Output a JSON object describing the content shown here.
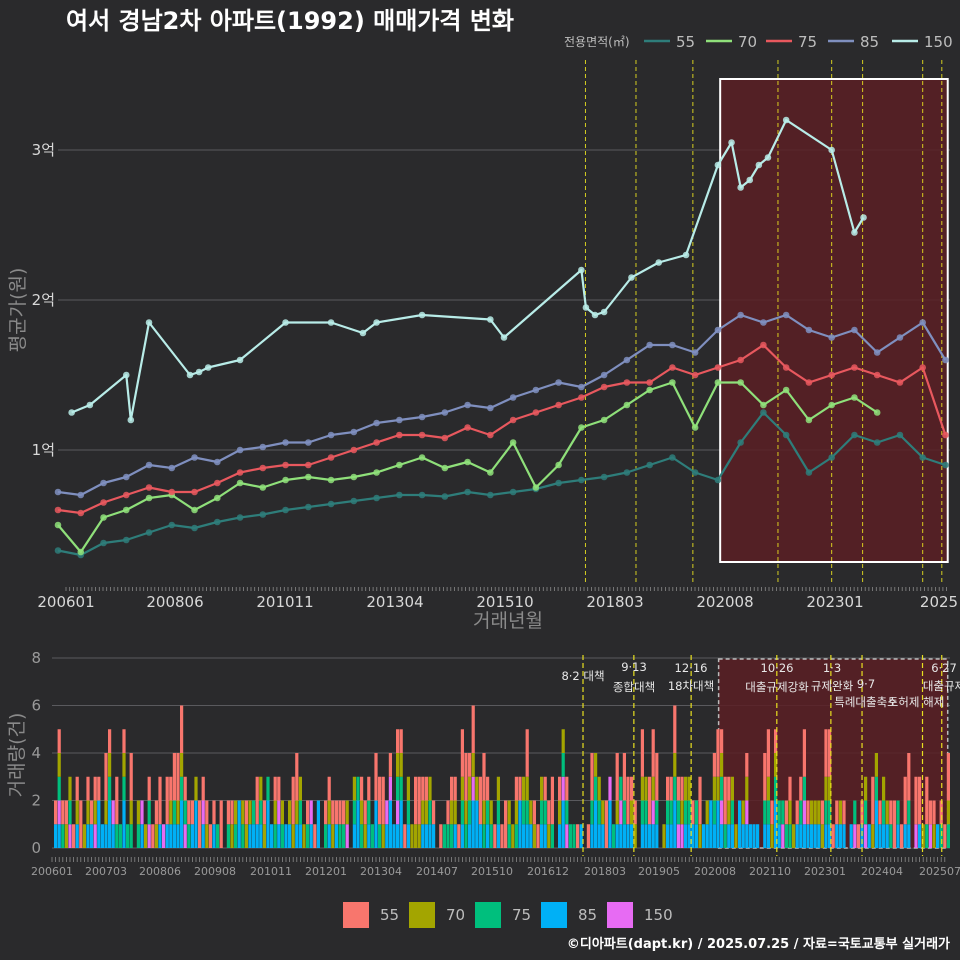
{
  "title": "여서 경남2차 아파트(1992) 매매가격 변화",
  "footer": "©디아파트(dapt.kr) / 2025.07.25 / 자료=국토교통부 실거래가",
  "colors": {
    "background": "#2a2a2c",
    "s55": "#2e7d7a",
    "s70": "#8fe07a",
    "s75": "#e8585e",
    "s85": "#7f8fbf",
    "s150": "#b8ece8",
    "b55": "#f8766d",
    "b70": "#a3a500",
    "b75": "#00bf7d",
    "b85": "#00b0f6",
    "b150": "#e76bf3",
    "highlight": "#5a1f24",
    "event_line": "#e8e020"
  },
  "chart_data": [
    {
      "type": "line",
      "xlabel": "거래년월",
      "ylabel": "평균가(원)",
      "legend_title": "전용면적(㎡)",
      "legend_position": "top-right",
      "x_ticks": [
        "200601",
        "200806",
        "201011",
        "201304",
        "201510",
        "201803",
        "202008",
        "202301",
        "2025"
      ],
      "y_ticks": [
        "1억",
        "2억",
        "3억"
      ],
      "y_tick_values": [
        1,
        2,
        3
      ],
      "ylim": [
        0.1,
        3.6
      ],
      "x_range": [
        2006.0,
        2025.6
      ],
      "highlight_range": [
        2020.55,
        2025.55
      ],
      "event_lines": [
        2017.59,
        2018.7,
        2019.95,
        2021.82,
        2023.0,
        2023.68,
        2025.0,
        2025.42
      ],
      "series": [
        {
          "name": "55",
          "x": [
            2006.0,
            2006.5,
            2007.0,
            2007.5,
            2008.0,
            2008.5,
            2009.0,
            2009.5,
            2010.0,
            2010.5,
            2011.0,
            2011.5,
            2012.0,
            2012.5,
            2013.0,
            2013.5,
            2014.0,
            2014.5,
            2015.0,
            2015.5,
            2016.0,
            2016.5,
            2017.0,
            2017.5,
            2018.0,
            2018.5,
            2019.0,
            2019.5,
            2020.0,
            2020.5,
            2021.0,
            2021.5,
            2022.0,
            2022.5,
            2023.0,
            2023.5,
            2024.0,
            2024.5,
            2025.0,
            2025.5
          ],
          "values": [
            0.33,
            0.3,
            0.38,
            0.4,
            0.45,
            0.5,
            0.48,
            0.52,
            0.55,
            0.57,
            0.6,
            0.62,
            0.64,
            0.66,
            0.68,
            0.7,
            0.7,
            0.69,
            0.72,
            0.7,
            0.72,
            0.74,
            0.78,
            0.8,
            0.82,
            0.85,
            0.9,
            0.95,
            0.85,
            0.8,
            1.05,
            1.25,
            1.1,
            0.85,
            0.95,
            1.1,
            1.05,
            1.1,
            0.95,
            0.9
          ]
        },
        {
          "name": "70",
          "x": [
            2006.0,
            2006.5,
            2007.0,
            2007.5,
            2008.0,
            2008.5,
            2009.0,
            2009.5,
            2010.0,
            2010.5,
            2011.0,
            2011.5,
            2012.0,
            2012.5,
            2013.0,
            2013.5,
            2014.0,
            2014.5,
            2015.0,
            2015.5,
            2016.0,
            2016.5,
            2017.0,
            2017.5,
            2018.0,
            2018.5,
            2019.0,
            2019.5,
            2020.0,
            2020.5,
            2021.0,
            2021.5,
            2022.0,
            2022.5,
            2023.0,
            2023.5,
            2024.0
          ],
          "values": [
            0.5,
            0.32,
            0.55,
            0.6,
            0.68,
            0.7,
            0.6,
            0.68,
            0.78,
            0.75,
            0.8,
            0.82,
            0.8,
            0.82,
            0.85,
            0.9,
            0.95,
            0.88,
            0.92,
            0.85,
            1.05,
            0.75,
            0.9,
            1.15,
            1.2,
            1.3,
            1.4,
            1.45,
            1.15,
            1.45,
            1.45,
            1.3,
            1.4,
            1.2,
            1.3,
            1.35,
            1.25
          ]
        },
        {
          "name": "75",
          "x": [
            2006.0,
            2006.5,
            2007.0,
            2007.5,
            2008.0,
            2008.5,
            2009.0,
            2009.5,
            2010.0,
            2010.5,
            2011.0,
            2011.5,
            2012.0,
            2012.5,
            2013.0,
            2013.5,
            2014.0,
            2014.5,
            2015.0,
            2015.5,
            2016.0,
            2016.5,
            2017.0,
            2017.5,
            2018.0,
            2018.5,
            2019.0,
            2019.5,
            2020.0,
            2020.5,
            2021.0,
            2021.5,
            2022.0,
            2022.5,
            2023.0,
            2023.5,
            2024.0,
            2024.5,
            2025.0,
            2025.5
          ],
          "values": [
            0.6,
            0.58,
            0.65,
            0.7,
            0.75,
            0.72,
            0.72,
            0.78,
            0.85,
            0.88,
            0.9,
            0.9,
            0.95,
            1.0,
            1.05,
            1.1,
            1.1,
            1.08,
            1.15,
            1.1,
            1.2,
            1.25,
            1.3,
            1.35,
            1.42,
            1.45,
            1.45,
            1.55,
            1.5,
            1.55,
            1.6,
            1.7,
            1.55,
            1.45,
            1.5,
            1.55,
            1.5,
            1.45,
            1.55,
            1.1
          ]
        },
        {
          "name": "85",
          "x": [
            2006.0,
            2006.5,
            2007.0,
            2007.5,
            2008.0,
            2008.5,
            2009.0,
            2009.5,
            2010.0,
            2010.5,
            2011.0,
            2011.5,
            2012.0,
            2012.5,
            2013.0,
            2013.5,
            2014.0,
            2014.5,
            2015.0,
            2015.5,
            2016.0,
            2016.5,
            2017.0,
            2017.5,
            2018.0,
            2018.5,
            2019.0,
            2019.5,
            2020.0,
            2020.5,
            2021.0,
            2021.5,
            2022.0,
            2022.5,
            2023.0,
            2023.5,
            2024.0,
            2024.5,
            2025.0,
            2025.5
          ],
          "values": [
            0.72,
            0.7,
            0.78,
            0.82,
            0.9,
            0.88,
            0.95,
            0.92,
            1.0,
            1.02,
            1.05,
            1.05,
            1.1,
            1.12,
            1.18,
            1.2,
            1.22,
            1.25,
            1.3,
            1.28,
            1.35,
            1.4,
            1.45,
            1.42,
            1.5,
            1.6,
            1.7,
            1.7,
            1.65,
            1.8,
            1.9,
            1.85,
            1.9,
            1.8,
            1.75,
            1.8,
            1.65,
            1.75,
            1.85,
            1.6
          ]
        },
        {
          "name": "150",
          "x": [
            2006.3,
            2006.7,
            2007.5,
            2007.6,
            2008.0,
            2008.9,
            2009.1,
            2009.3,
            2010.0,
            2011.0,
            2012.0,
            2012.7,
            2013.0,
            2014.0,
            2015.5,
            2015.8,
            2017.5,
            2017.6,
            2017.8,
            2018.0,
            2018.6,
            2019.2,
            2019.8,
            2020.5,
            2020.8,
            2021.0,
            2021.2,
            2021.4,
            2021.6,
            2022.0,
            2023.0,
            2023.5,
            2023.7
          ],
          "values": [
            1.25,
            1.3,
            1.5,
            1.2,
            1.85,
            1.5,
            1.52,
            1.55,
            1.6,
            1.85,
            1.85,
            1.78,
            1.85,
            1.9,
            1.87,
            1.75,
            2.2,
            1.95,
            1.9,
            1.92,
            2.15,
            2.25,
            2.3,
            2.9,
            3.05,
            2.75,
            2.8,
            2.9,
            2.95,
            3.2,
            3.0,
            2.45,
            2.55
          ]
        }
      ]
    },
    {
      "type": "bar",
      "stacked": true,
      "ylabel": "거래량(건)",
      "legend_position": "bottom",
      "ylim": [
        0,
        8
      ],
      "y_ticks": [
        "0",
        "2",
        "4",
        "6",
        "8"
      ],
      "x_ticks": [
        "200601",
        "200703",
        "200806",
        "200908",
        "201011",
        "201201",
        "201304",
        "201407",
        "201510",
        "201612",
        "201803",
        "201905",
        "202008",
        "202110",
        "202301",
        "202404",
        "202507"
      ],
      "series_names": [
        "55",
        "70",
        "75",
        "85",
        "150"
      ],
      "annotations": [
        {
          "x": 2017.59,
          "lines": [
            "8·2 대책"
          ]
        },
        {
          "x": 2018.7,
          "lines": [
            "9·13",
            "종합대책"
          ]
        },
        {
          "x": 2019.95,
          "lines": [
            "12·16",
            "18차대책"
          ]
        },
        {
          "x": 2021.82,
          "lines": [
            "10·26",
            "대출규제강화"
          ]
        },
        {
          "x": 2023.0,
          "lines": [
            "1·3",
            "규제완화"
          ]
        },
        {
          "x": 2023.68,
          "lines": [
            "9·7",
            "특례대출축소"
          ]
        },
        {
          "x": 2025.0,
          "lines": [
            "토허제 해제"
          ]
        },
        {
          "x": 2025.42,
          "lines": [
            "6·27",
            "대출규제"
          ]
        }
      ]
    }
  ]
}
